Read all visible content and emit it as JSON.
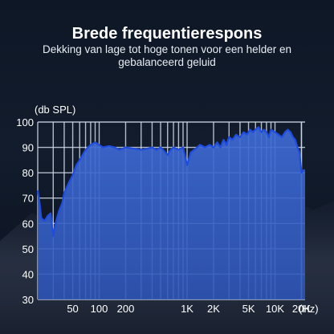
{
  "header": {
    "title": "Brede frequentierespons",
    "subtitle": "Dekking van lage tot hoge tonen voor een helder en gebalanceerd geluid"
  },
  "colors": {
    "grid": "#cfd8e6",
    "fill": "#3f6bd6",
    "line": "#1f4de0",
    "text": "#ffffff"
  },
  "chart_data": {
    "type": "area",
    "title": "",
    "xlabel": "(Hz)",
    "ylabel": "(db SPL)",
    "xscale": "log",
    "xlim": [
      20,
      22000
    ],
    "ylim": [
      30,
      100
    ],
    "y_ticks": [
      30,
      40,
      50,
      60,
      70,
      80,
      90,
      100
    ],
    "x_tick_labels": [
      {
        "label": "50",
        "value": 50
      },
      {
        "label": "100",
        "value": 100
      },
      {
        "label": "200",
        "value": 200
      },
      {
        "label": "1K",
        "value": 1000
      },
      {
        "label": "2K",
        "value": 2000
      },
      {
        "label": "5K",
        "value": 5000
      },
      {
        "label": "10K",
        "value": 10000
      },
      {
        "label": "20K",
        "value": 20000
      }
    ],
    "grid": true,
    "series": [
      {
        "x": [
          20,
          21,
          22,
          24,
          26,
          28,
          30,
          31,
          33,
          35,
          38,
          40,
          45,
          50,
          55,
          60,
          70,
          80,
          90,
          100,
          110,
          130,
          150,
          170,
          200,
          250,
          300,
          350,
          400,
          450,
          500,
          550,
          600,
          650,
          700,
          800,
          900,
          1000,
          1100,
          1200,
          1300,
          1400,
          1600,
          1800,
          2000,
          2200,
          2400,
          2600,
          2800,
          3000,
          3300,
          3600,
          4000,
          4400,
          4800,
          5200,
          5600,
          6000,
          6500,
          7000,
          7500,
          8000,
          8500,
          9000,
          10000,
          11000,
          12000,
          13000,
          14000,
          15000,
          16000,
          17000,
          18000,
          19000,
          20000,
          21000,
          22000
        ],
        "y": [
          73,
          68,
          62,
          61,
          63,
          64,
          55,
          58,
          62,
          65,
          68,
          72,
          76,
          79,
          83,
          85,
          89,
          91,
          92,
          91,
          90,
          90.5,
          90,
          89,
          90,
          89.5,
          89,
          89.5,
          90,
          89,
          90,
          88.5,
          87,
          89,
          90,
          89,
          90,
          83,
          88,
          89,
          90,
          91,
          90,
          91,
          90,
          92,
          90,
          93,
          91,
          94,
          93,
          95,
          94,
          96,
          95,
          97,
          96,
          97,
          98,
          96,
          97,
          96,
          94,
          97,
          96,
          95,
          94,
          96,
          97,
          96,
          94,
          93,
          90,
          88,
          80,
          81,
          81
        ]
      }
    ]
  }
}
